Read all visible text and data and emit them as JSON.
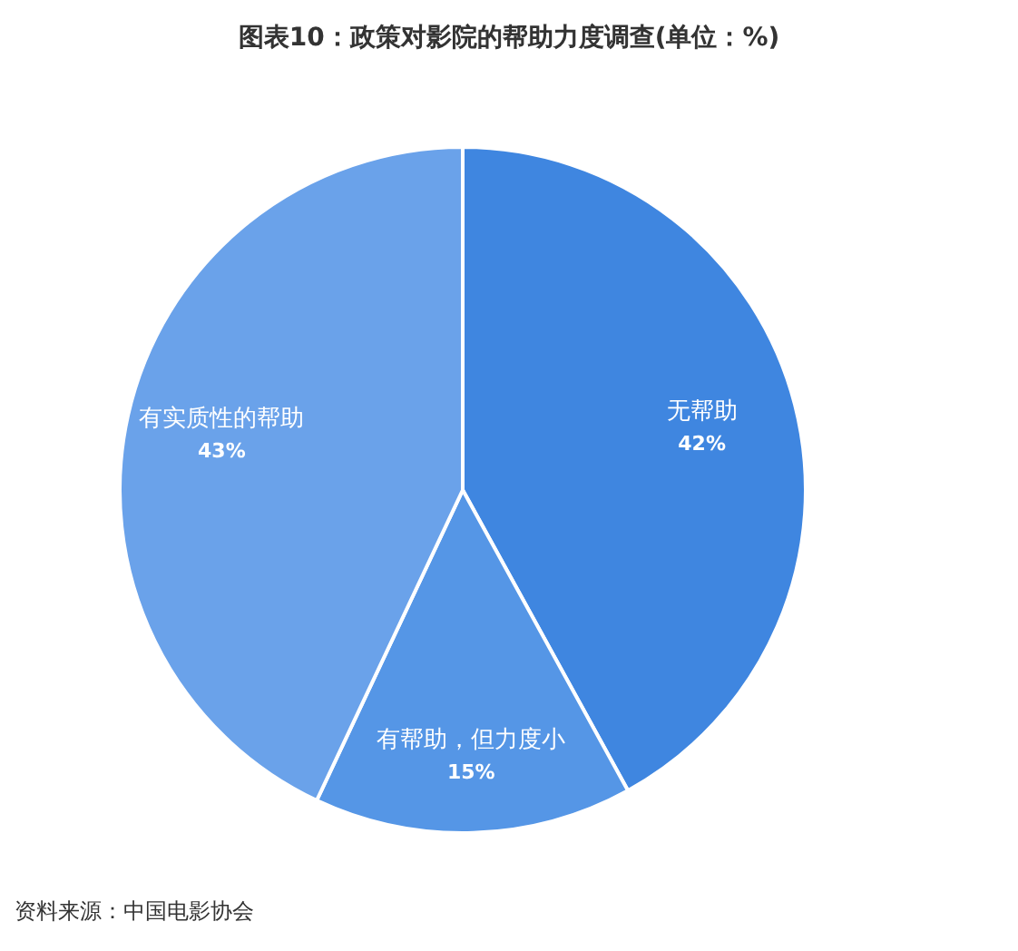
{
  "chart_data": {
    "type": "pie",
    "title": "图表10：政策对影院的帮助力度调查(单位：%)",
    "categories": [
      "无帮助",
      "有帮助，但力度小",
      "有实质性的帮助"
    ],
    "values": [
      42,
      15,
      43
    ],
    "value_labels": [
      "42%",
      "15%",
      "43%"
    ],
    "colors": [
      "#3f86e0",
      "#5596e6",
      "#6aa2ea"
    ],
    "annotations": [
      "资料来源：中国电影协会"
    ]
  }
}
